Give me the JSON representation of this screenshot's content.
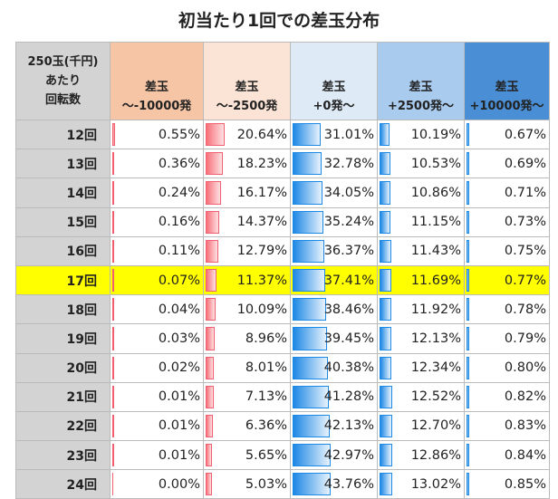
{
  "chart_data": {
    "type": "table",
    "title": "初当たり1回での差玉分布",
    "corner_header": [
      "250玉(千円)",
      "あたり",
      "回転数"
    ],
    "columns": [
      {
        "line1": "差玉",
        "line2": "～-10000発",
        "color": "#f5c5a6",
        "bar": "red"
      },
      {
        "line1": "差玉",
        "line2": "～-2500発",
        "color": "#fbe3d6",
        "bar": "red"
      },
      {
        "line1": "差玉",
        "line2": "+0発～",
        "color": "#deebf7",
        "bar": "blue"
      },
      {
        "line1": "差玉",
        "line2": "+2500発～",
        "color": "#a9cbee",
        "bar": "blue"
      },
      {
        "line1": "差玉",
        "line2": "+10000発～",
        "color": "#4a8fd6",
        "bar": "blue"
      }
    ],
    "highlight_row": "17回",
    "highlight_color": "#ffff00",
    "rows": [
      {
        "label": "12回",
        "values": [
          "0.55%",
          "20.64%",
          "31.01%",
          "10.19%",
          "0.67%"
        ]
      },
      {
        "label": "13回",
        "values": [
          "0.36%",
          "18.23%",
          "32.78%",
          "10.53%",
          "0.69%"
        ]
      },
      {
        "label": "14回",
        "values": [
          "0.24%",
          "16.17%",
          "34.05%",
          "10.86%",
          "0.71%"
        ]
      },
      {
        "label": "15回",
        "values": [
          "0.16%",
          "14.37%",
          "35.24%",
          "11.15%",
          "0.73%"
        ]
      },
      {
        "label": "16回",
        "values": [
          "0.11%",
          "12.79%",
          "36.37%",
          "11.43%",
          "0.75%"
        ]
      },
      {
        "label": "17回",
        "values": [
          "0.07%",
          "11.37%",
          "37.41%",
          "11.69%",
          "0.77%"
        ]
      },
      {
        "label": "18回",
        "values": [
          "0.04%",
          "10.09%",
          "38.46%",
          "11.92%",
          "0.78%"
        ]
      },
      {
        "label": "19回",
        "values": [
          "0.03%",
          "8.96%",
          "39.45%",
          "12.13%",
          "0.79%"
        ]
      },
      {
        "label": "20回",
        "values": [
          "0.02%",
          "8.01%",
          "40.38%",
          "12.34%",
          "0.80%"
        ]
      },
      {
        "label": "21回",
        "values": [
          "0.01%",
          "7.13%",
          "41.28%",
          "12.52%",
          "0.82%"
        ]
      },
      {
        "label": "22回",
        "values": [
          "0.01%",
          "6.36%",
          "42.13%",
          "12.70%",
          "0.83%"
        ]
      },
      {
        "label": "23回",
        "values": [
          "0.01%",
          "5.65%",
          "42.97%",
          "12.86%",
          "0.84%"
        ]
      },
      {
        "label": "24回",
        "values": [
          "0.00%",
          "5.03%",
          "43.76%",
          "13.02%",
          "0.85%"
        ]
      }
    ]
  }
}
